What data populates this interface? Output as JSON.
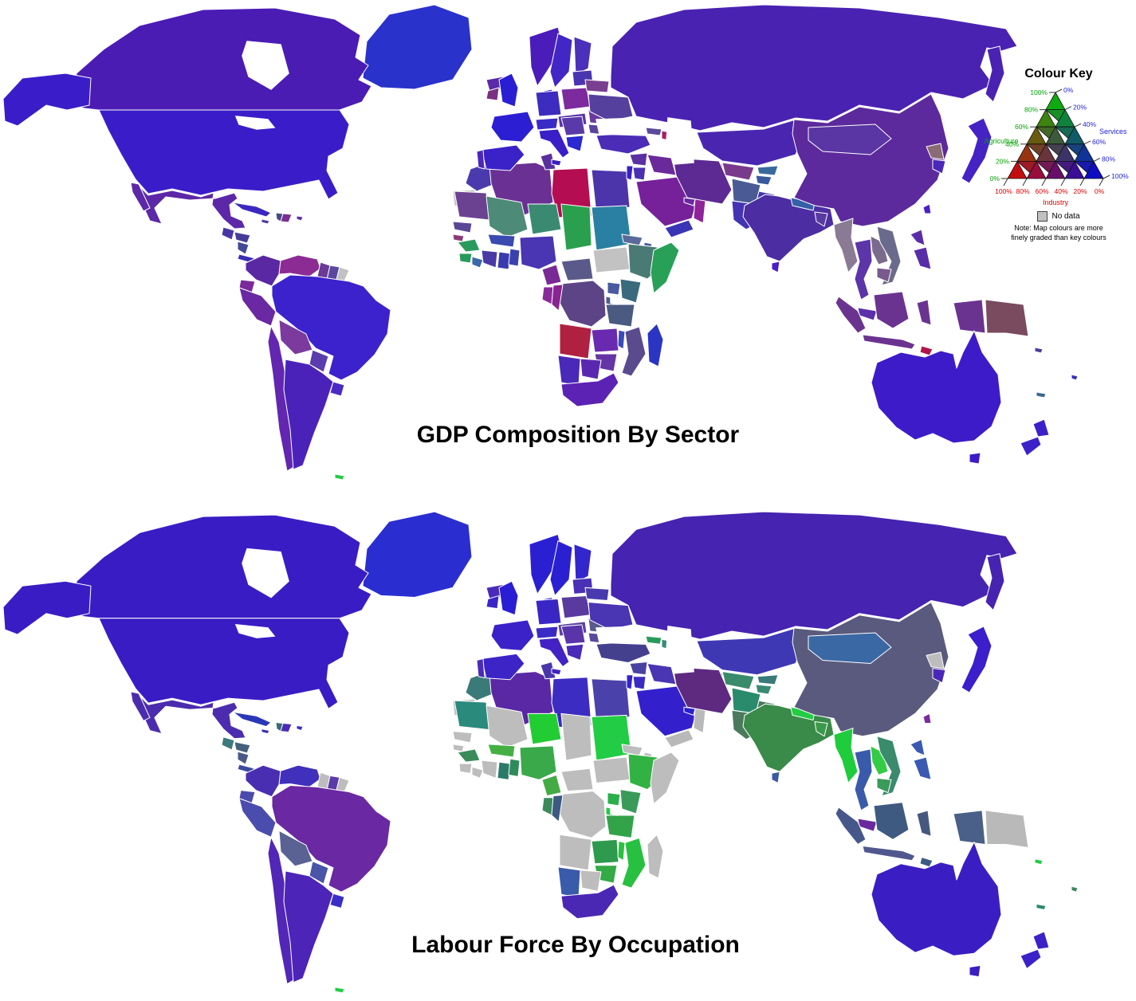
{
  "maps": {
    "top": {
      "title": "GDP Composition By Sector"
    },
    "bottom": {
      "title": "Labour Force By Occupation"
    }
  },
  "key": {
    "title": "Colour Key",
    "agriculture": {
      "label": "Agriculture",
      "color": "#00a400",
      "ticks": [
        "100%",
        "80%",
        "60%",
        "40%",
        "20%",
        "0%"
      ]
    },
    "services": {
      "label": "Services",
      "color": "#2222dd",
      "ticks": [
        "0%",
        "20%",
        "40%",
        "60%",
        "80%",
        "100%"
      ]
    },
    "industry": {
      "label": "Industry",
      "color": "#e00000",
      "ticks": [
        "100%",
        "80%",
        "60%",
        "40%",
        "20%",
        "0%"
      ]
    },
    "corner_colors": {
      "agriculture": "#00c400",
      "industry": "#e20000",
      "services": "#0000e2"
    },
    "no_data_label": "No data",
    "no_data_color": "#c0c0c0",
    "note_line1": "Note: Map colours are more",
    "note_line2": "finely graded than key colours"
  },
  "regions": {
    "greenland": {
      "name": "Greenland",
      "gdp": "#2a32cc",
      "labour": "#2a2ed0"
    },
    "iceland": {
      "name": "Iceland",
      "gdp": "#5a2aa8",
      "labour": "#4a2ab8"
    },
    "canada": {
      "name": "Canada",
      "gdp": "#4a1cb4",
      "labour": "#3a1cc4"
    },
    "alaska": {
      "name": "Alaska",
      "gdp": "#3a1dc8",
      "labour": "#3a1cc4"
    },
    "usa": {
      "name": "United States",
      "gdp": "#3a1dc8",
      "labour": "#3a1cc4"
    },
    "mexico": {
      "name": "Mexico",
      "gdp": "#5c28a8",
      "labour": "#4c2cae"
    },
    "baja": {
      "name": "Baja California",
      "gdp": "#5c28a8",
      "labour": "#4c2cae"
    },
    "guatemala": {
      "name": "Guatemala",
      "gdp": "#4a35a4",
      "labour": "#3a7a7c"
    },
    "honduras": {
      "name": "Honduras",
      "gdp": "#453c9a",
      "labour": "#44607e"
    },
    "nicaragua": {
      "name": "Nicaragua",
      "gdp": "#414a96",
      "labour": "#4a5a88"
    },
    "costapanama": {
      "name": "Costa Rica / Panama",
      "gdp": "#3a2cb4",
      "labour": "#3a4a9e"
    },
    "cuba": {
      "name": "Cuba",
      "gdp": "#3a28c0",
      "labour": "#2a38b8"
    },
    "haiti": {
      "name": "Haiti",
      "gdp": "#454b85",
      "labour": "#3a6a74"
    },
    "domrep": {
      "name": "Dominican Republic",
      "gdp": "#7e2d90",
      "labour": "#4a2ab8"
    },
    "jamaica": {
      "name": "Jamaica",
      "gdp": "#4a3aa0",
      "labour": "#3a2eb8"
    },
    "puertorico": {
      "name": "Puerto Rico",
      "gdp": "#5a2da8",
      "labour": "#3a2ec0"
    },
    "colombia": {
      "name": "Colombia",
      "gdp": "#5a28a2",
      "labour": "#4a2eb2"
    },
    "venezuela": {
      "name": "Venezuela",
      "gdp": "#8c2b94",
      "labour": "#4030bc"
    },
    "guyana": {
      "name": "Guyana",
      "gdp": "#6a3a96",
      "labour": "#bdbdbd"
    },
    "suriname": {
      "name": "Suriname",
      "gdp": "#5a48a0",
      "labour": "#5a3aa8"
    },
    "frguiana": {
      "name": "French Guiana",
      "gdp": "#c2c2c2",
      "labour": "#bdbdbd"
    },
    "ecuador": {
      "name": "Ecuador",
      "gdp": "#7a2a9a",
      "labour": "#4a4aac"
    },
    "peru": {
      "name": "Peru",
      "gdp": "#6a28a2",
      "labour": "#4a4cae"
    },
    "brazil": {
      "name": "Brazil",
      "gdp": "#3c22cc",
      "labour": "#6a28a2"
    },
    "bolivia": {
      "name": "Bolivia",
      "gdp": "#7c3a9e",
      "labour": "#5a6294"
    },
    "paraguay": {
      "name": "Paraguay",
      "gdp": "#5a3cae",
      "labour": "#4a54a8"
    },
    "chile": {
      "name": "Chile",
      "gdp": "#6226b0",
      "labour": "#5226b6"
    },
    "argentina": {
      "name": "Argentina",
      "gdp": "#4a22ba",
      "labour": "#4c24b8"
    },
    "uruguay": {
      "name": "Uruguay",
      "gdp": "#4a2ac2",
      "labour": "#3a2ec6"
    },
    "falkland": {
      "name": "Falkland Islands",
      "gdp": "#22cc44",
      "labour": "#22cc44"
    },
    "morocco": {
      "name": "Morocco",
      "gdp": "#4a3aae",
      "labour": "#3a7a78"
    },
    "wsahara": {
      "name": "Western Sahara",
      "gdp": "#c2c2c2",
      "labour": "#bdbdbd"
    },
    "algeria": {
      "name": "Algeria",
      "gdp": "#6a3094",
      "labour": "#5a28a4"
    },
    "tunisia": {
      "name": "Tunisia",
      "gdp": "#5a2f9e",
      "labour": "#4a35aa"
    },
    "libya": {
      "name": "Libya",
      "gdp": "#b50d52",
      "labour": "#3c2cc2"
    },
    "egypt": {
      "name": "Egypt",
      "gdp": "#4c35aa",
      "labour": "#4a42aa"
    },
    "mauritania": {
      "name": "Mauritania",
      "gdp": "#6b4292",
      "labour": "#2a8a7c"
    },
    "mali": {
      "name": "Mali",
      "gdp": "#4d8a78",
      "labour": "#bdbdbd"
    },
    "niger": {
      "name": "Niger",
      "gdp": "#3a8a72",
      "labour": "#22cc33"
    },
    "chad": {
      "name": "Chad",
      "gdp": "#2aa04e",
      "labour": "#bdbdbd"
    },
    "sudan": {
      "name": "Sudan",
      "gdp": "#2a80a2",
      "labour": "#22cc44"
    },
    "ssudan": {
      "name": "South Sudan",
      "gdp": "#c2c2c2",
      "labour": "#bdbdbd"
    },
    "senegal": {
      "name": "Senegal",
      "gdp": "#5a4896",
      "labour": "#bdbdbd"
    },
    "guineabissau": {
      "name": "Guinea-Bissau",
      "gdp": "#8a3a7a",
      "labour": "#bdbdbd"
    },
    "guinea": {
      "name": "Guinea",
      "gdp": "#2a9a5c",
      "labour": "#3a8a5c"
    },
    "sierraleone": {
      "name": "Sierra Leone",
      "gdp": "#2a9a5a",
      "labour": "#bdbdbd"
    },
    "liberia": {
      "name": "Liberia",
      "gdp": "#3a6aaa",
      "labour": "#bdbdbd"
    },
    "ivorycoast": {
      "name": "Ivory Coast",
      "gdp": "#4a3aa4",
      "labour": "#bdbdbd"
    },
    "ghana": {
      "name": "Ghana",
      "gdp": "#3a3ab0",
      "labour": "#2a7a6a"
    },
    "togobenin": {
      "name": "Togo / Benin",
      "gdp": "#3a42ae",
      "labour": "#2f8a5a"
    },
    "burkina": {
      "name": "Burkina Faso",
      "gdp": "#3a4ab0",
      "labour": "#44b044"
    },
    "nigeria": {
      "name": "Nigeria",
      "gdp": "#4a35b2",
      "labour": "#3aa94a"
    },
    "cameroon": {
      "name": "Cameroon",
      "gdp": "#7a2a94",
      "labour": "#44aa44"
    },
    "car": {
      "name": "Central African Republic",
      "gdp": "#5a5a8a",
      "labour": "#bdbdbd"
    },
    "eritrea": {
      "name": "Eritrea",
      "gdp": "#5a6a9a",
      "labour": "#bdbdbd"
    },
    "djibouti": {
      "name": "Djibouti",
      "gdp": "#4a5aa0",
      "labour": "#bdbdbd"
    },
    "ethiopia": {
      "name": "Ethiopia",
      "gdp": "#4a7a74",
      "labour": "#33b244"
    },
    "somalia": {
      "name": "Somalia",
      "gdp": "#28a058",
      "labour": "#bdbdbd"
    },
    "uganda": {
      "name": "Uganda",
      "gdp": "#4a5aa0",
      "labour": "#2ab04a"
    },
    "kenya": {
      "name": "Kenya",
      "gdp": "#3a6a7c",
      "labour": "#3a9a5a"
    },
    "rwandaburundi": {
      "name": "Rwanda / Burundi",
      "gdp": "#4a5a90",
      "labour": "#22cc44"
    },
    "drc": {
      "name": "DR Congo",
      "gdp": "#5c4486",
      "labour": "#bdbdbd"
    },
    "gabon": {
      "name": "Gabon",
      "gdp": "#8a2a9a",
      "labour": "#3a8a5c"
    },
    "congo": {
      "name": "Congo",
      "gdp": "#8a2490",
      "labour": "#3a5a82"
    },
    "tanzania": {
      "name": "Tanzania",
      "gdp": "#4a5a80",
      "labour": "#33a34a"
    },
    "angola": {
      "name": "Angola",
      "gdp": "#b02040",
      "labour": "#bdbdbd"
    },
    "zambia": {
      "name": "Zambia",
      "gdp": "#6a2ab0",
      "labour": "#2e9a4e"
    },
    "malawi": {
      "name": "Malawi",
      "gdp": "#3a4ab8",
      "labour": "#2ac040"
    },
    "mozambique": {
      "name": "Mozambique",
      "gdp": "#5a4a8e",
      "labour": "#28c040"
    },
    "zimbabwe": {
      "name": "Zimbabwe",
      "gdp": "#6535a5",
      "labour": "#33aa44"
    },
    "botswana": {
      "name": "Botswana",
      "gdp": "#5a28b0",
      "labour": "#bdbdbd"
    },
    "namibia": {
      "name": "Namibia",
      "gdp": "#4a28b8",
      "labour": "#3a5aaa"
    },
    "southafrica": {
      "name": "South Africa",
      "gdp": "#5c22b4",
      "labour": "#4a28b4"
    },
    "madagascar": {
      "name": "Madagascar",
      "gdp": "#2a35c4",
      "labour": "#bdbdbd"
    },
    "uk": {
      "name": "United Kingdom",
      "gdp": "#2a1ed4",
      "labour": "#2a1ed4"
    },
    "ireland": {
      "name": "Ireland",
      "gdp": "#7a3082",
      "labour": "#3a26c8"
    },
    "norway": {
      "name": "Norway",
      "gdp": "#4a1dba",
      "labour": "#2a20d2"
    },
    "sweden": {
      "name": "Sweden",
      "gdp": "#4326c6",
      "labour": "#2a20d2"
    },
    "finland": {
      "name": "Finland",
      "gdp": "#4a30ba",
      "labour": "#3326cc"
    },
    "denmark": {
      "name": "Denmark",
      "gdp": "#3a26c8",
      "labour": "#2a24ce"
    },
    "baltics": {
      "name": "Baltic States",
      "gdp": "#4a35b0",
      "labour": "#4a30b4"
    },
    "iberia": {
      "name": "Spain",
      "gdp": "#3a22c8",
      "labour": "#3c24c6"
    },
    "portugal": {
      "name": "Portugal",
      "gdp": "#4a28b8",
      "labour": "#4a2cb8"
    },
    "france": {
      "name": "France",
      "gdp": "#2c1ed2",
      "labour": "#3a22c8"
    },
    "germany": {
      "name": "Germany",
      "gdp": "#3c2cc0",
      "labour": "#3a26c4"
    },
    "poland": {
      "name": "Poland",
      "gdp": "#7c2a9e",
      "labour": "#5a3a9e"
    },
    "czechia": {
      "name": "Czechia / Slovakia / Hungary",
      "gdp": "#5a35a8",
      "labour": "#5a42a0"
    },
    "austria": {
      "name": "Austria / Switzerland",
      "gdp": "#3a2ac6",
      "labour": "#3a2ac6"
    },
    "italy": {
      "name": "Italy",
      "gdp": "#3a1ec8",
      "labour": "#4222c4"
    },
    "sicily": {
      "name": "Sicily",
      "gdp": "#3a1ec8",
      "labour": "#4222c4"
    },
    "balkans": {
      "name": "Balkans",
      "gdp": "#5a3aa8",
      "labour": "#5a35aa"
    },
    "greece": {
      "name": "Greece",
      "gdp": "#2a28d0",
      "labour": "#4a2ab8"
    },
    "romania": {
      "name": "Romania",
      "gdp": "#6a3a9e",
      "labour": "#5a5a8c"
    },
    "bulgaria": {
      "name": "Bulgaria",
      "gdp": "#5a429e",
      "labour": "#5a4a9c"
    },
    "belarus": {
      "name": "Belarus",
      "gdp": "#7a4090",
      "labour": "#4a3ab0"
    },
    "ukraine": {
      "name": "Ukraine",
      "gdp": "#55409e",
      "labour": "#4a35b2"
    },
    "turkey": {
      "name": "Turkey",
      "gdp": "#4a2cb6",
      "labour": "#45408e"
    },
    "russia": {
      "name": "Russia",
      "gdp": "#4a22b2",
      "labour": "#4623b0"
    },
    "kamchatka": {
      "name": "Kamchatka",
      "gdp": "#4a22b2",
      "labour": "#4623b0"
    },
    "kazakhstan": {
      "name": "Kazakhstan",
      "gdp": "#4a26b0",
      "labour": "#3f38b4"
    },
    "uzbekistan": {
      "name": "Uzbekistan",
      "gdp": "#7a3a8c",
      "labour": "#3a8a6c"
    },
    "turkmenistan": {
      "name": "Turkmenistan",
      "gdp": "#8a2a74",
      "labour": "#2a8a6c"
    },
    "kyrgyzstan": {
      "name": "Kyrgyzstan",
      "gdp": "#3a6a9c",
      "labour": "#3a7a7c"
    },
    "tajikistan": {
      "name": "Tajikistan",
      "gdp": "#3a5a9e",
      "labour": "#3a8a74"
    },
    "georgia": {
      "name": "Georgia",
      "gdp": "#5a4a9a",
      "labour": "#2a9a5c"
    },
    "azerbaijan": {
      "name": "Azerbaijan",
      "gdp": "#aa2062",
      "labour": "#3a8a7c"
    },
    "syria": {
      "name": "Syria",
      "gdp": "#5a30a2",
      "labour": "#4a42a2"
    },
    "israel": {
      "name": "Israel / Lebanon",
      "gdp": "#3a20ca",
      "labour": "#3322cc"
    },
    "jordan": {
      "name": "Jordan",
      "gdp": "#4a30b2",
      "labour": "#3a2cc2"
    },
    "iraq": {
      "name": "Iraq",
      "gdp": "#6a2a9c",
      "labour": "#4a35b2"
    },
    "saudi": {
      "name": "Saudi Arabia",
      "gdp": "#76209a",
      "labour": "#3320cc"
    },
    "yemen": {
      "name": "Yemen",
      "gdp": "#3a35b4",
      "labour": "#b9b9b9"
    },
    "oman": {
      "name": "Oman",
      "gdp": "#8e239c",
      "labour": "#b9b9b9"
    },
    "uae": {
      "name": "United Arab Emirates",
      "gdp": "#6a28a2",
      "labour": "#2a20d0"
    },
    "qatar": {
      "name": "Qatar",
      "gdp": "#b01050",
      "labour": "#2a30c8"
    },
    "iran": {
      "name": "Iran",
      "gdp": "#5c2a92",
      "labour": "#5e2a80"
    },
    "afghanistan": {
      "name": "Afghanistan",
      "gdp": "#4a5a94",
      "labour": "#2a8a6c"
    },
    "pakistan": {
      "name": "Pakistan",
      "gdp": "#4434b4",
      "labour": "#4a7a5c"
    },
    "india": {
      "name": "India",
      "gdp": "#4c2da2",
      "labour": "#3a8a4a"
    },
    "srilanka": {
      "name": "Sri Lanka",
      "gdp": "#4a1ec4",
      "labour": "#3a5aa2"
    },
    "nepal": {
      "name": "Nepal",
      "gdp": "#3560a8",
      "labour": "#22cc44"
    },
    "bangladesh": {
      "name": "Bangladesh",
      "gdp": "#5a3aa2",
      "labour": "#3a9a4a"
    },
    "china": {
      "name": "China",
      "gdp": "#5c2a9c",
      "labour": "#5a5a7e"
    },
    "mongolia": {
      "name": "Mongolia",
      "gdp": "#5a35a4",
      "labour": "#3a68a4"
    },
    "nkorea": {
      "name": "North Korea",
      "gdp": "#8a6a74",
      "labour": "#bdbdbd"
    },
    "skorea": {
      "name": "South Korea",
      "gdp": "#4a28b8",
      "labour": "#4a26b8"
    },
    "japan": {
      "name": "Japan",
      "gdp": "#4422c4",
      "labour": "#3c1ecc"
    },
    "taiwan": {
      "name": "Taiwan",
      "gdp": "#4a20c2",
      "labour": "#7a2a9c"
    },
    "myanmar": {
      "name": "Myanmar",
      "gdp": "#8a7a94",
      "labour": "#1ecc3c"
    },
    "thailand": {
      "name": "Thailand",
      "gdp": "#5c35a8",
      "labour": "#3a5aaa"
    },
    "laos": {
      "name": "Laos",
      "gdp": "#7a6a8c",
      "labour": "#33cc44"
    },
    "vietnam": {
      "name": "Vietnam",
      "gdp": "#6a6a8c",
      "labour": "#3a8a6c"
    },
    "cambodia": {
      "name": "Cambodia",
      "gdp": "#7a5a8c",
      "labour": "#3a9a5c"
    },
    "malaysia": {
      "name": "Malaysia",
      "gdp": "#5c2faa",
      "labour": "#6a2a9c"
    },
    "sumatra": {
      "name": "Indonesia (Sumatra)",
      "gdp": "#6b3390",
      "labour": "#46588a"
    },
    "java": {
      "name": "Indonesia (Java)",
      "gdp": "#6b3390",
      "labour": "#50588e"
    },
    "borneo": {
      "name": "Indonesia (Borneo)",
      "gdp": "#6b3390",
      "labour": "#3f5a80"
    },
    "sulawesi": {
      "name": "Indonesia (Sulawesi)",
      "gdp": "#6b3390",
      "labour": "#46587e"
    },
    "timor": {
      "name": "Timor-Leste",
      "gdp": "#b01548",
      "labour": "#3a5a80"
    },
    "westpapua": {
      "name": "Indonesia (Papua)",
      "gdp": "#6b3390",
      "labour": "#4a6088"
    },
    "png": {
      "name": "Papua New Guinea",
      "gdp": "#7a4a5e",
      "labour": "#b9b9b9"
    },
    "philippines1": {
      "name": "Philippines (Luzon)",
      "gdp": "#5a2da8",
      "labour": "#3a5ab2"
    },
    "philippines2": {
      "name": "Philippines (Visayas/Mindanao)",
      "gdp": "#5a2da8",
      "labour": "#3a5ab2"
    },
    "australia": {
      "name": "Australia",
      "gdp": "#3e1bc8",
      "labour": "#3a1ec4"
    },
    "tasmania": {
      "name": "Tasmania",
      "gdp": "#3e1bc8",
      "labour": "#3a1ec4"
    },
    "nz1": {
      "name": "New Zealand (North Island)",
      "gdp": "#3a22c8",
      "labour": "#3a22c8"
    },
    "nz2": {
      "name": "New Zealand (South Island)",
      "gdp": "#3a22c8",
      "labour": "#3a22c8"
    },
    "newcaledonia": {
      "name": "New Caledonia",
      "gdp": "#3a6a8c",
      "labour": "#2a8a6c"
    },
    "fiji": {
      "name": "Fiji",
      "gdp": "#3a2ec0",
      "labour": "#3a8a5c"
    },
    "solomon": {
      "name": "Solomon Islands",
      "gdp": "#4a3aa0",
      "labour": "#22cc44"
    }
  }
}
